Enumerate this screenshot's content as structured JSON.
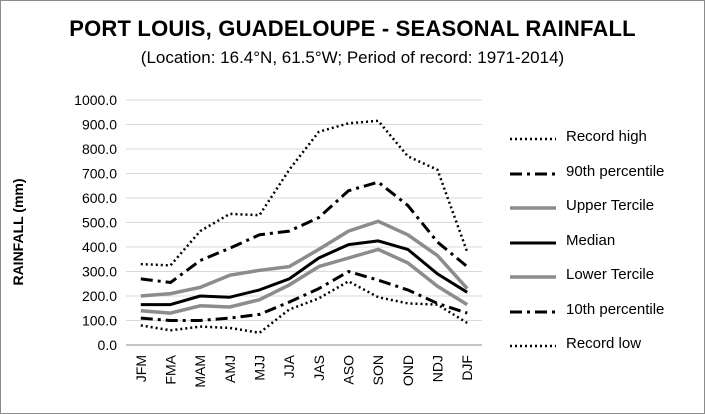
{
  "title": "PORT LOUIS, GUADELOUPE - SEASONAL RAINFALL",
  "subtitle": "(Location: 16.4°N, 61.5°W; Period of record: 1971-2014)",
  "chart_data": {
    "type": "line",
    "title": "PORT LOUIS, GUADELOUPE - SEASONAL RAINFALL",
    "subtitle": "(Location: 16.4°N, 61.5°W; Period of record: 1971-2014)",
    "xlabel": "",
    "ylabel": "RAINFALL (mm)",
    "ylim": [
      0,
      1000
    ],
    "yticks": [
      "0.0",
      "100.0",
      "200.0",
      "300.0",
      "400.0",
      "500.0",
      "600.0",
      "700.0",
      "800.0",
      "900.0",
      "1000.0"
    ],
    "categories": [
      "JFM",
      "FMA",
      "MAM",
      "AMJ",
      "MJJ",
      "JJA",
      "JAS",
      "ASO",
      "SON",
      "OND",
      "NDJ",
      "DJF"
    ],
    "grid": "horizontal",
    "legend_position": "right",
    "series": [
      {
        "name": "Record high",
        "style": "dotted",
        "color": "#000000",
        "values": [
          330,
          325,
          465,
          535,
          530,
          715,
          870,
          905,
          915,
          770,
          715,
          380
        ]
      },
      {
        "name": "90th percentile",
        "style": "dashdot",
        "color": "#000000",
        "values": [
          270,
          255,
          345,
          395,
          450,
          465,
          520,
          630,
          665,
          570,
          420,
          320
        ]
      },
      {
        "name": "Upper Tercile",
        "style": "solid",
        "color": "#8c8c8c",
        "values": [
          200,
          210,
          235,
          285,
          305,
          320,
          390,
          465,
          505,
          450,
          365,
          230
        ]
      },
      {
        "name": "Median",
        "style": "solid",
        "color": "#000000",
        "values": [
          165,
          165,
          200,
          195,
          225,
          270,
          355,
          410,
          425,
          390,
          290,
          215
        ]
      },
      {
        "name": "Lower Tercile",
        "style": "solid",
        "color": "#8c8c8c",
        "values": [
          140,
          130,
          160,
          155,
          185,
          245,
          320,
          355,
          390,
          335,
          240,
          165
        ]
      },
      {
        "name": "10th percentile",
        "style": "dashdot",
        "color": "#000000",
        "values": [
          110,
          100,
          100,
          110,
          125,
          175,
          230,
          300,
          265,
          225,
          170,
          130
        ]
      },
      {
        "name": "Record low",
        "style": "dotted",
        "color": "#000000",
        "values": [
          80,
          60,
          75,
          70,
          50,
          145,
          190,
          260,
          195,
          170,
          165,
          90
        ]
      }
    ]
  }
}
